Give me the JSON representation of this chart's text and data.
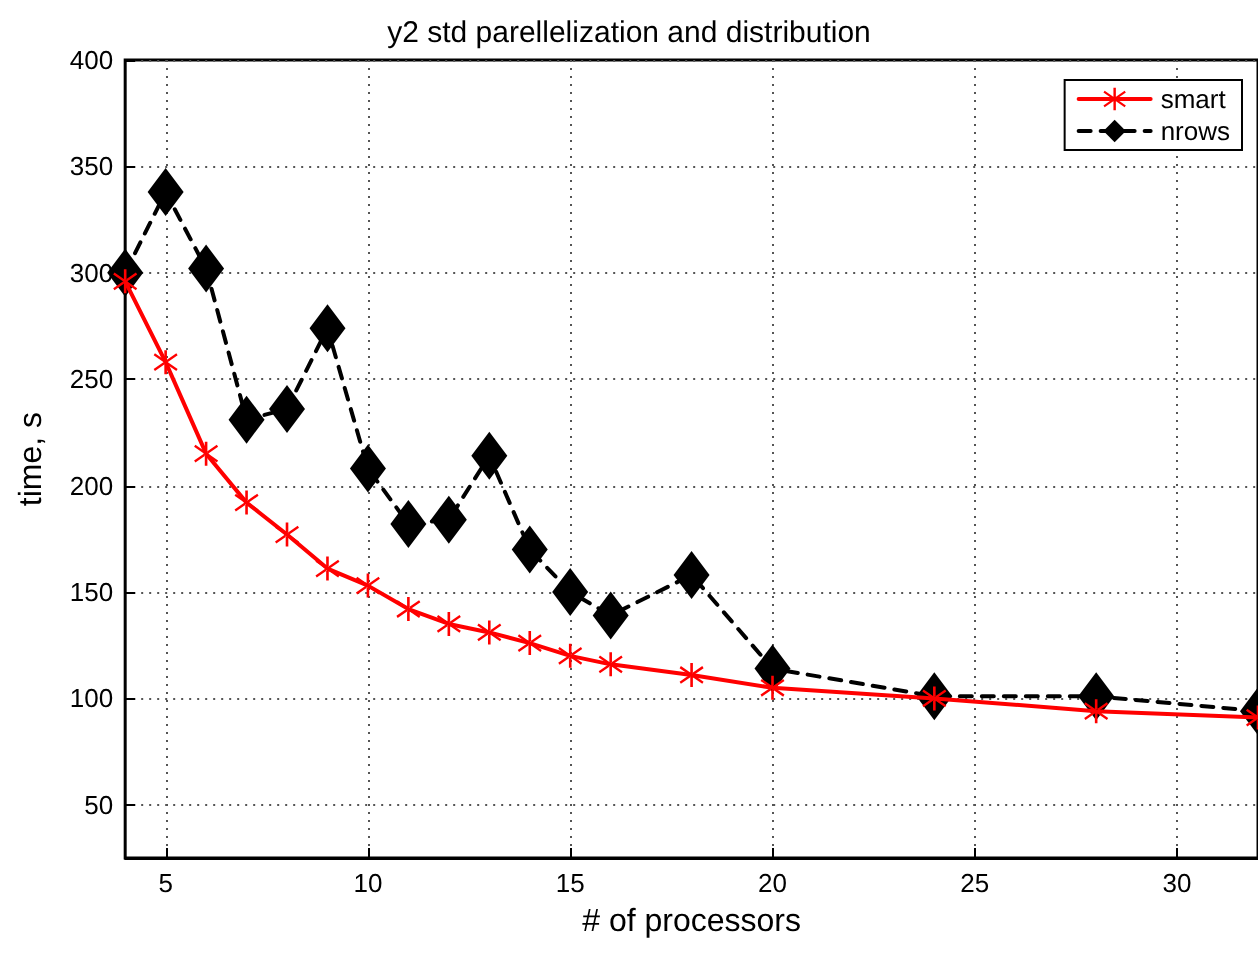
{
  "chart_data": {
    "type": "line",
    "title": "y2 std parellelization and distribution",
    "xlabel": "# of processors",
    "ylabel": "time, s",
    "x": [
      4,
      5,
      6,
      7,
      8,
      9,
      10,
      11,
      12,
      13,
      14,
      15,
      16,
      18,
      20,
      24,
      28,
      32
    ],
    "series": [
      {
        "name": "smart",
        "color": "#ff0000",
        "marker": "cross",
        "line_style": "solid",
        "values": [
          296,
          258,
          215,
          192,
          177,
          161,
          153,
          142,
          135,
          131,
          126,
          120,
          116,
          111,
          105,
          100,
          94,
          91
        ]
      },
      {
        "name": "nrows",
        "color": "#000000",
        "marker": "diamond",
        "line_style": "dashed",
        "values": [
          300,
          338,
          302,
          231,
          236,
          274,
          208,
          182,
          184,
          214,
          170,
          150,
          139,
          158,
          114,
          101,
          101,
          94
        ]
      }
    ],
    "xlim": [
      4,
      32
    ],
    "xticks": [
      5,
      10,
      15,
      20,
      25,
      30
    ],
    "ylim": [
      25,
      400
    ],
    "yticks": [
      50,
      100,
      150,
      200,
      250,
      300,
      350,
      400
    ],
    "grid": true,
    "legend": "top right"
  }
}
